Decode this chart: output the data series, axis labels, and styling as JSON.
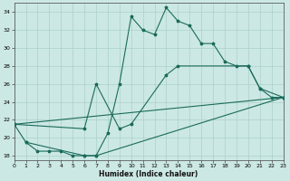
{
  "xlabel": "Humidex (Indice chaleur)",
  "background_color": "#cce8e4",
  "grid_color": "#aad0ca",
  "line_color": "#1a6b5a",
  "xlim": [
    0,
    23
  ],
  "ylim": [
    17.5,
    35
  ],
  "yticks": [
    18,
    20,
    22,
    24,
    26,
    28,
    30,
    32,
    34
  ],
  "xticks": [
    0,
    1,
    2,
    3,
    4,
    5,
    6,
    7,
    8,
    9,
    10,
    11,
    12,
    13,
    14,
    15,
    16,
    17,
    18,
    19,
    20,
    21,
    22,
    23
  ],
  "main_x": [
    0,
    1,
    2,
    3,
    4,
    5,
    6,
    7,
    8,
    9,
    10,
    11,
    12,
    13,
    14,
    15,
    16,
    17,
    18,
    19,
    20,
    21,
    22,
    23
  ],
  "main_y": [
    21.5,
    19.5,
    18.5,
    18.5,
    18.5,
    18.0,
    18.0,
    18.0,
    20.5,
    26.0,
    33.5,
    32.0,
    31.5,
    34.5,
    33.0,
    32.5,
    30.5,
    30.5,
    28.5,
    28.0,
    28.0,
    25.5,
    24.5,
    24.5
  ],
  "line2_x": [
    0,
    6,
    7,
    9,
    10,
    13,
    14,
    20,
    21,
    23
  ],
  "line2_y": [
    21.5,
    21.0,
    26.0,
    21.0,
    21.5,
    27.0,
    28.0,
    28.0,
    25.5,
    24.5
  ],
  "line3_x": [
    0,
    23
  ],
  "line3_y": [
    21.5,
    24.5
  ],
  "line4_x": [
    1,
    6,
    7,
    23
  ],
  "line4_y": [
    19.5,
    18.0,
    18.0,
    24.5
  ]
}
